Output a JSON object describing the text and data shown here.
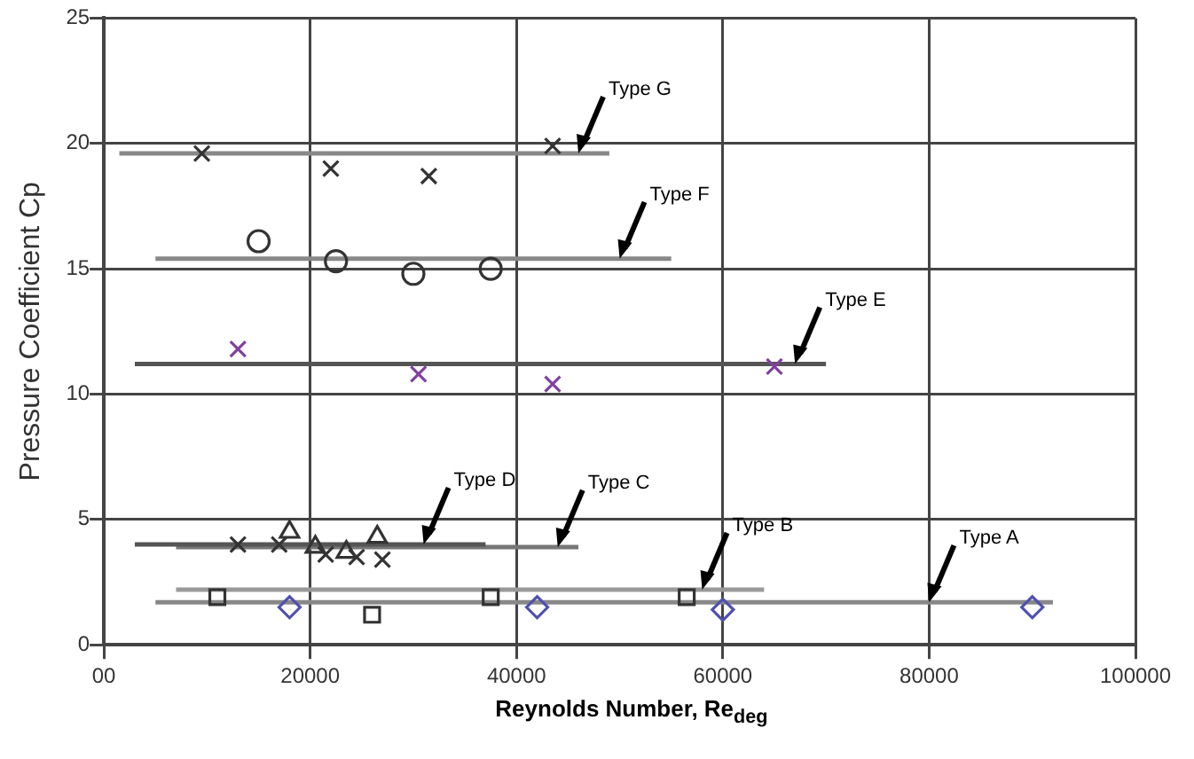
{
  "chart_data": {
    "type": "scatter",
    "xlabel": "Reynolds Number, Re$_{deg}$",
    "ylabel": "Pressure Coefficient Cp",
    "xlim": [
      0,
      100000
    ],
    "xticks": [
      {
        "value": 0,
        "label": "00"
      },
      20000,
      40000,
      60000,
      80000,
      100000
    ],
    "ylim": [
      0,
      25
    ],
    "yticks": [
      0,
      5,
      10,
      15,
      20,
      25
    ],
    "grid": true,
    "legend": false,
    "series": [
      {
        "marker": "cross",
        "color": "#333333",
        "x": [
          9500,
          22000,
          31500,
          43500
        ],
        "values": [
          19.6,
          19.0,
          18.7,
          19.9
        ]
      },
      {
        "type": "line",
        "marker": "none",
        "color": "#888888",
        "x": [
          1500,
          49000
        ],
        "values": [
          19.6,
          19.6
        ]
      },
      {
        "marker": "circle",
        "color": "#333333",
        "x": [
          15000,
          22500,
          30000,
          37500
        ],
        "values": [
          16.1,
          15.3,
          14.8,
          15.0
        ]
      },
      {
        "type": "line",
        "marker": "none",
        "color": "#888888",
        "x": [
          5000,
          55000
        ],
        "values": [
          15.4,
          15.4
        ]
      },
      {
        "marker": "cross",
        "color": "#8040a0",
        "x": [
          13000,
          30500,
          43500,
          65000
        ],
        "values": [
          11.8,
          10.8,
          10.4,
          11.1
        ]
      },
      {
        "type": "line",
        "marker": "none",
        "color": "#555555",
        "x": [
          3000,
          70000
        ],
        "values": [
          11.2,
          11.2
        ]
      },
      {
        "marker": "triangle",
        "color": "#333333",
        "x": [
          18000,
          20500,
          23500,
          26500
        ],
        "values": [
          4.5,
          3.9,
          3.7,
          4.3
        ]
      },
      {
        "type": "line",
        "marker": "none",
        "color": "#555555",
        "x": [
          3000,
          37000
        ],
        "values": [
          4.0,
          4.0
        ]
      },
      {
        "marker": "cross",
        "color": "#333333",
        "x": [
          13000,
          17000,
          21500,
          24500,
          27000
        ],
        "values": [
          4.0,
          4.0,
          3.6,
          3.5,
          3.4
        ]
      },
      {
        "type": "line",
        "marker": "none",
        "color": "#777777",
        "x": [
          7000,
          46000
        ],
        "values": [
          3.9,
          3.9
        ]
      },
      {
        "marker": "square",
        "color": "#333333",
        "x": [
          11000,
          26000,
          37500,
          56500
        ],
        "values": [
          1.9,
          1.2,
          1.9,
          1.9
        ]
      },
      {
        "type": "line",
        "marker": "none",
        "color": "#999999",
        "x": [
          7000,
          64000
        ],
        "values": [
          2.2,
          2.2
        ]
      },
      {
        "marker": "diamond",
        "color": "#5050b0",
        "x": [
          18000,
          42000,
          60000,
          90000
        ],
        "values": [
          1.5,
          1.5,
          1.4,
          1.5
        ]
      },
      {
        "type": "line",
        "marker": "none",
        "color": "#888888",
        "x": [
          5000,
          92000
        ],
        "values": [
          1.7,
          1.7
        ]
      }
    ],
    "annotations": [
      {
        "text": "Type G",
        "x": 46000,
        "y": 19.6
      },
      {
        "text": "Type F",
        "x": 50000,
        "y": 15.4
      },
      {
        "text": "Type E",
        "x": 67000,
        "y": 11.2
      },
      {
        "text": "Type D",
        "x": 31000,
        "y": 4.0
      },
      {
        "text": "Type C",
        "x": 44000,
        "y": 3.9
      },
      {
        "text": "Type B",
        "x": 58000,
        "y": 2.2
      },
      {
        "text": "Type A",
        "x": 80000,
        "y": 1.7
      }
    ]
  }
}
